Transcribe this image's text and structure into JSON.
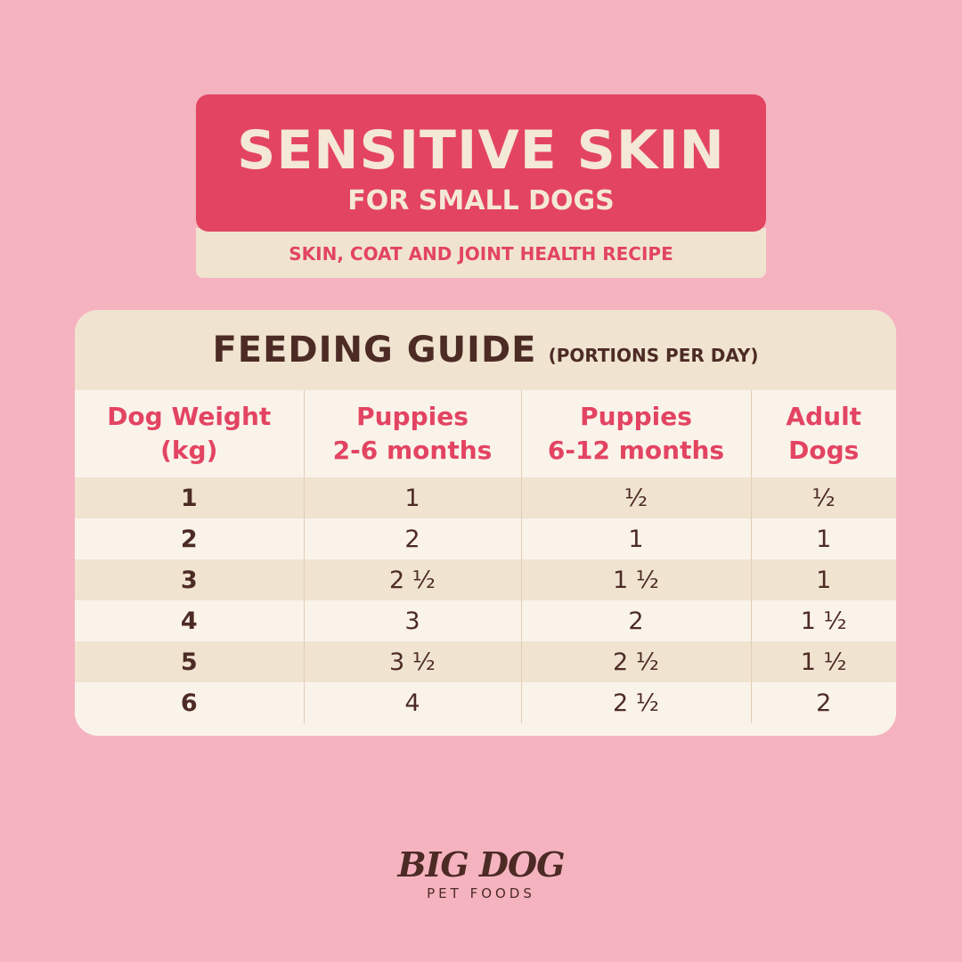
{
  "header": {
    "title": "SENSITIVE SKIN",
    "subtitle": "FOR SMALL DOGS",
    "recipe": "SKIN, COAT AND JOINT HEALTH RECIPE"
  },
  "guide": {
    "title": "FEEDING GUIDE",
    "note": "(PORTIONS PER DAY)",
    "columns": [
      {
        "line1": "Dog Weight",
        "line2": "(kg)"
      },
      {
        "line1": "Puppies",
        "line2": "2-6 months"
      },
      {
        "line1": "Puppies",
        "line2": "6-12 months"
      },
      {
        "line1": "Adult",
        "line2": "Dogs"
      }
    ],
    "rows": [
      [
        "1",
        "1",
        "½",
        "½"
      ],
      [
        "2",
        "2",
        "1",
        "1"
      ],
      [
        "3",
        "2 ½",
        "1 ½",
        "1"
      ],
      [
        "4",
        "3",
        "2",
        "1 ½"
      ],
      [
        "5",
        "3 ½",
        "2 ½",
        "1 ½"
      ],
      [
        "6",
        "4",
        "2 ½",
        "2"
      ]
    ]
  },
  "brand": {
    "name": "BIG DOG",
    "tagline": "PET FOODS"
  },
  "colors": {
    "background": "#f5b3c0",
    "accent": "#e34462",
    "cream": "#f0e4d1",
    "text_dark": "#4d2b25"
  }
}
